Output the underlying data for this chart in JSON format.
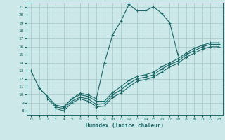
{
  "xlabel": "Humidex (Indice chaleur)",
  "xlim": [
    -0.5,
    23.5
  ],
  "ylim": [
    7.5,
    21.5
  ],
  "xticks": [
    0,
    1,
    2,
    3,
    4,
    5,
    6,
    7,
    8,
    9,
    10,
    11,
    12,
    13,
    14,
    15,
    16,
    17,
    18,
    19,
    20,
    21,
    22,
    23
  ],
  "yticks": [
    8,
    9,
    10,
    11,
    12,
    13,
    14,
    15,
    16,
    17,
    18,
    19,
    20,
    21
  ],
  "bg_color": "#cce8e8",
  "grid_color": "#aacccc",
  "line_color": "#1a6868",
  "series": [
    {
      "x": [
        0,
        1,
        2,
        3,
        4,
        5,
        6,
        7,
        8,
        9,
        10,
        11,
        12,
        13,
        14,
        15,
        16,
        17,
        18
      ],
      "y": [
        13.0,
        10.8,
        9.8,
        8.7,
        8.5,
        9.5,
        10.2,
        10.0,
        9.5,
        14.0,
        17.5,
        19.2,
        21.3,
        20.5,
        20.5,
        21.0,
        20.2,
        19.0,
        15.0
      ]
    },
    {
      "x": [
        1,
        2,
        3,
        4,
        5,
        6,
        7,
        8,
        9,
        10,
        11,
        12,
        13,
        14,
        15,
        16,
        17,
        18,
        19,
        20,
        21,
        22,
        23
      ],
      "y": [
        10.8,
        9.8,
        8.7,
        8.5,
        9.5,
        10.0,
        9.8,
        9.2,
        9.2,
        10.3,
        11.0,
        11.8,
        12.3,
        12.5,
        12.8,
        13.5,
        14.0,
        14.5,
        15.2,
        15.8,
        16.2,
        16.5,
        16.5
      ]
    },
    {
      "x": [
        2,
        3,
        4,
        5,
        6,
        7,
        8,
        9,
        10,
        11,
        12,
        13,
        14,
        15,
        16,
        17,
        18,
        19,
        20,
        21,
        22,
        23
      ],
      "y": [
        9.5,
        8.5,
        8.3,
        9.2,
        9.7,
        9.5,
        8.8,
        8.9,
        10.0,
        10.6,
        11.4,
        12.0,
        12.2,
        12.5,
        13.2,
        13.8,
        14.2,
        15.0,
        15.5,
        16.0,
        16.3,
        16.3
      ]
    },
    {
      "x": [
        3,
        4,
        5,
        6,
        7,
        8,
        9,
        10,
        11,
        12,
        13,
        14,
        15,
        16,
        17,
        18,
        19,
        20,
        21,
        22,
        23
      ],
      "y": [
        8.3,
        8.0,
        9.0,
        9.5,
        9.2,
        8.5,
        8.6,
        9.7,
        10.2,
        11.0,
        11.7,
        11.9,
        12.2,
        12.8,
        13.5,
        13.9,
        14.7,
        15.2,
        15.7,
        16.0,
        16.0
      ]
    }
  ]
}
